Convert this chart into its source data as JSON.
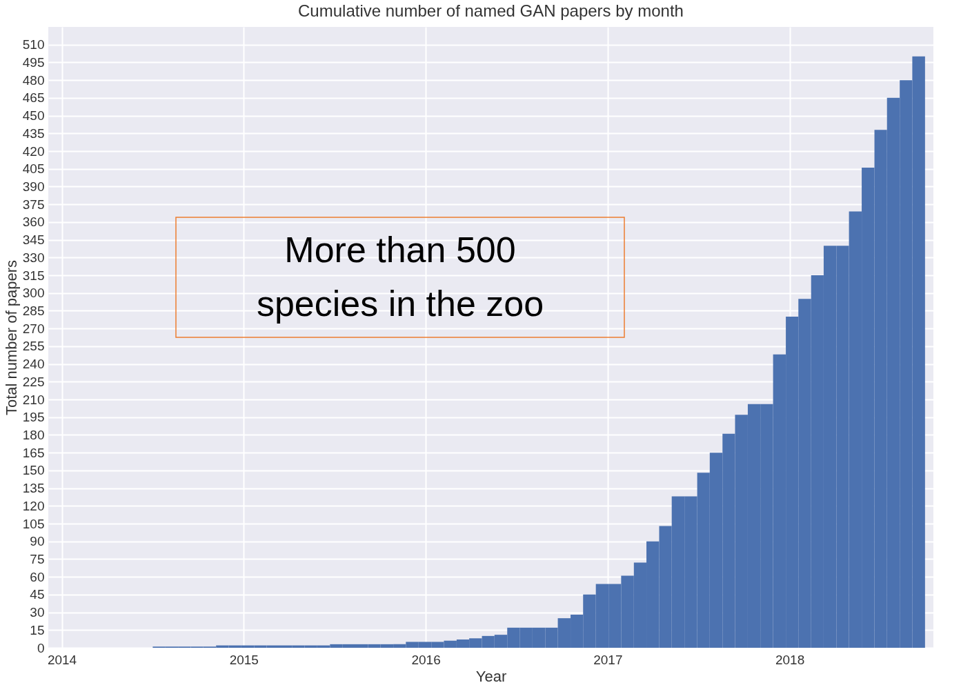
{
  "chart_data": {
    "type": "histogram",
    "title": "Cumulative number of named GAN papers by month",
    "xlabel": "Year",
    "ylabel": "Total number of papers",
    "bins": [
      2014.5,
      2014.57,
      2014.639,
      2014.709,
      2014.778,
      2014.848,
      2014.917,
      2014.987,
      2015.057,
      2015.126,
      2015.196,
      2015.265,
      2015.335,
      2015.404,
      2015.474,
      2015.544,
      2015.613,
      2015.683,
      2015.752,
      2015.822,
      2015.891,
      2015.961,
      2016.031,
      2016.1,
      2016.17,
      2016.239,
      2016.309,
      2016.378,
      2016.448,
      2016.518,
      2016.587,
      2016.657,
      2016.726,
      2016.796,
      2016.865,
      2016.935,
      2017.005,
      2017.074,
      2017.144,
      2017.213,
      2017.283,
      2017.352,
      2017.422,
      2017.492,
      2017.561,
      2017.631,
      2017.7,
      2017.77,
      2017.839,
      2017.909,
      2017.979,
      2018.048,
      2018.118,
      2018.187,
      2018.257,
      2018.326,
      2018.396,
      2018.466,
      2018.535,
      2018.605,
      2018.674,
      2018.744
    ],
    "values": [
      1,
      1,
      1,
      1,
      1,
      2,
      2,
      2,
      2,
      2,
      2,
      2,
      2,
      2,
      3,
      3,
      3,
      3,
      3,
      3,
      5,
      5,
      5,
      6,
      7,
      8,
      10,
      11,
      17,
      17,
      17,
      17,
      25,
      28,
      45,
      54,
      54,
      61,
      72,
      90,
      103,
      128,
      128,
      148,
      165,
      181,
      197,
      206,
      206,
      248,
      280,
      295,
      315,
      340,
      340,
      369,
      406,
      438,
      465,
      480,
      500
    ],
    "color": "#4c72b0",
    "xlim": [
      2013.926,
      2018.79
    ],
    "xticks": [
      2014,
      2015,
      2016,
      2017,
      2018
    ],
    "ylim": [
      0,
      525
    ],
    "yticks": [
      0,
      15,
      30,
      45,
      60,
      75,
      90,
      105,
      120,
      135,
      150,
      165,
      180,
      195,
      210,
      225,
      240,
      255,
      270,
      285,
      300,
      315,
      330,
      345,
      360,
      375,
      390,
      405,
      420,
      435,
      450,
      465,
      480,
      495,
      510
    ],
    "grid": true,
    "annotations": [
      "More than 500 species in the zoo"
    ]
  }
}
